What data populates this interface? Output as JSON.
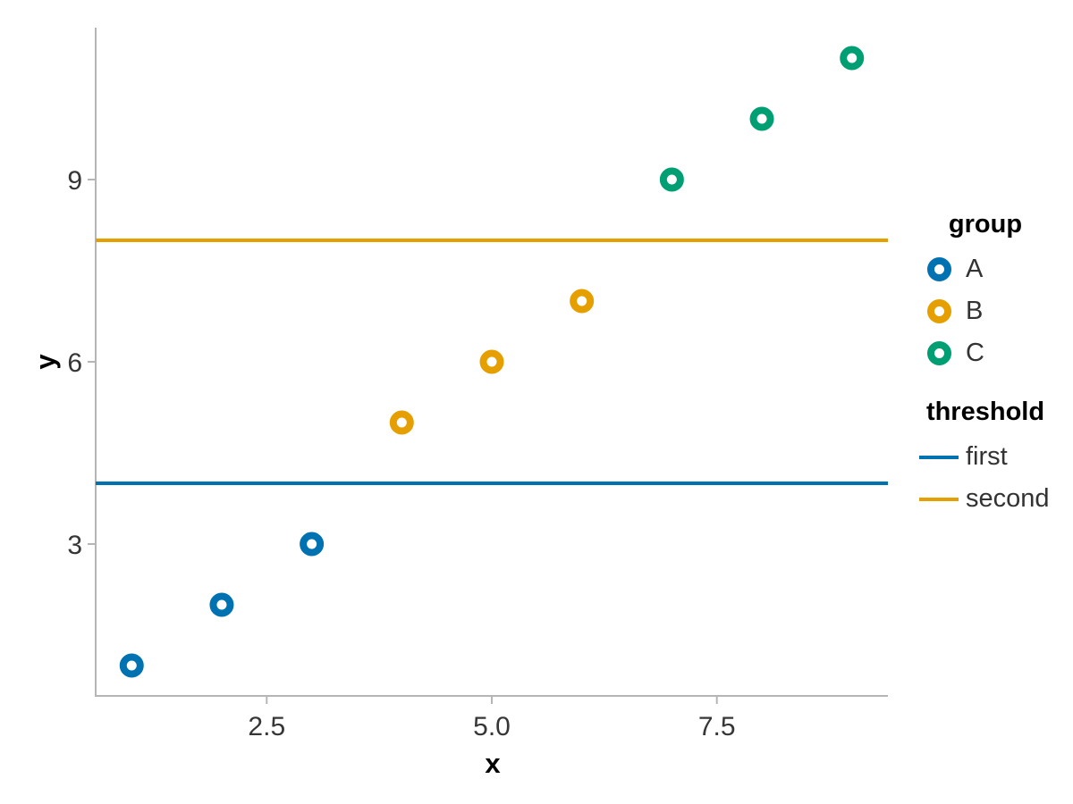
{
  "chart_data": {
    "type": "scatter",
    "title": "",
    "background": "#ffffff",
    "grid": false,
    "x_axis": {
      "title": "x",
      "domain": [
        0.6,
        9.4
      ],
      "ticks": [
        {
          "value": 2.5,
          "label": "2.5"
        },
        {
          "value": 5.0,
          "label": "5.0"
        },
        {
          "value": 7.5,
          "label": "7.5"
        }
      ]
    },
    "y_axis": {
      "title": "y",
      "domain": [
        0.5,
        11.5
      ],
      "ticks": [
        {
          "value": 3,
          "label": "3"
        },
        {
          "value": 6,
          "label": "6"
        },
        {
          "value": 9,
          "label": "9"
        }
      ]
    },
    "series": [
      {
        "name": "A",
        "color": "#0072B2",
        "points": [
          {
            "x": 1,
            "y": 1
          },
          {
            "x": 2,
            "y": 2
          },
          {
            "x": 3,
            "y": 3
          }
        ]
      },
      {
        "name": "B",
        "color": "#E69F00",
        "points": [
          {
            "x": 4,
            "y": 5
          },
          {
            "x": 5,
            "y": 6
          },
          {
            "x": 6,
            "y": 7
          }
        ]
      },
      {
        "name": "C",
        "color": "#009E73",
        "points": [
          {
            "x": 7,
            "y": 9
          },
          {
            "x": 8,
            "y": 10
          },
          {
            "x": 9,
            "y": 11
          }
        ]
      }
    ],
    "thresholds": [
      {
        "name": "first",
        "value": 4,
        "color": "#0072B2"
      },
      {
        "name": "second",
        "value": 8,
        "color": "#E69F00"
      }
    ],
    "legend": [
      {
        "title": "group",
        "symbol": "circle",
        "items": [
          {
            "label": "A",
            "color": "#0072B2"
          },
          {
            "label": "B",
            "color": "#E69F00"
          },
          {
            "label": "C",
            "color": "#009E73"
          }
        ]
      },
      {
        "title": "threshold",
        "symbol": "line",
        "items": [
          {
            "label": "first",
            "color": "#0072B2"
          },
          {
            "label": "second",
            "color": "#E69F00"
          }
        ]
      }
    ],
    "style": {
      "axis_color": "#b5b5b5",
      "tick_label_color": "#363636",
      "title_color": "#000000",
      "legend_label_color": "#333333"
    }
  }
}
